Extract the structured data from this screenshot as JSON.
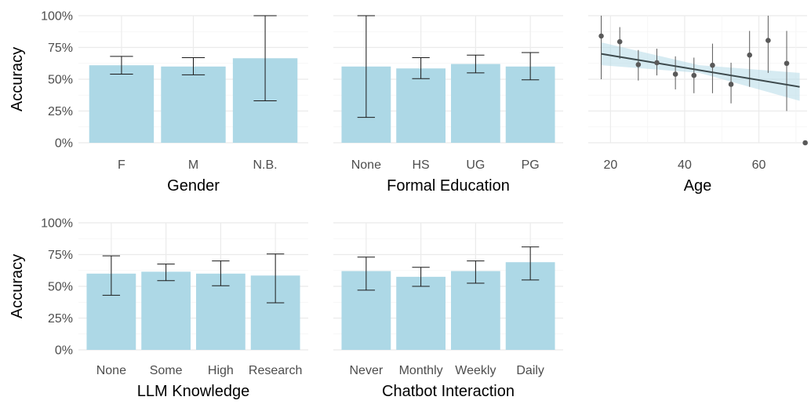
{
  "shared": {
    "ylabel": "Accuracy"
  },
  "chart_data": [
    {
      "id": "gender",
      "type": "bar",
      "xlabel": "Gender",
      "categories": [
        "F",
        "M",
        "N.B."
      ],
      "values": [
        0.61,
        0.6,
        0.665
      ],
      "lower": [
        0.54,
        0.535,
        0.33
      ],
      "upper": [
        0.68,
        0.67,
        1.0
      ],
      "ylim": [
        0,
        1
      ],
      "yticks": [
        "0%",
        "25%",
        "50%",
        "75%",
        "100%"
      ],
      "show_ylabel": true
    },
    {
      "id": "education",
      "type": "bar",
      "xlabel": "Formal Education",
      "categories": [
        "None",
        "HS",
        "UG",
        "PG"
      ],
      "values": [
        0.6,
        0.585,
        0.62,
        0.6
      ],
      "lower": [
        0.2,
        0.505,
        0.55,
        0.495
      ],
      "upper": [
        1.0,
        0.67,
        0.69,
        0.71
      ],
      "ylim": [
        0,
        1
      ],
      "show_ylabel": false
    },
    {
      "id": "age",
      "type": "scatter",
      "xlabel": "Age",
      "x": [
        17.5,
        22.5,
        27.5,
        32.5,
        37.5,
        42.5,
        47.5,
        52.5,
        57.5,
        62.5,
        67.5,
        72.5
      ],
      "y": [
        0.84,
        0.795,
        0.615,
        0.63,
        0.54,
        0.53,
        0.61,
        0.46,
        0.69,
        0.805,
        0.625,
        0.0
      ],
      "lower": [
        0.5,
        0.66,
        0.49,
        0.53,
        0.42,
        0.39,
        0.39,
        0.31,
        0.44,
        0.55,
        0.25,
        0.0
      ],
      "upper": [
        1.0,
        0.91,
        0.73,
        0.74,
        0.68,
        0.67,
        0.78,
        0.63,
        0.88,
        1.0,
        0.88,
        0.0
      ],
      "trend": {
        "x": [
          17.5,
          71
        ],
        "y": [
          0.7,
          0.44
        ]
      },
      "ribbon": {
        "x": [
          17.5,
          44,
          71
        ],
        "lower": [
          0.61,
          0.55,
          0.33
        ],
        "upper": [
          0.79,
          0.61,
          0.55
        ]
      },
      "xlim": [
        14,
        73
      ],
      "xticks": [
        "20",
        "40",
        "60"
      ],
      "ylim": [
        0,
        1
      ],
      "show_ylabel": false
    },
    {
      "id": "llm",
      "type": "bar",
      "xlabel": "LLM Knowledge",
      "categories": [
        "None",
        "Some",
        "High",
        "Research"
      ],
      "values": [
        0.6,
        0.615,
        0.6,
        0.585
      ],
      "lower": [
        0.43,
        0.545,
        0.505,
        0.37
      ],
      "upper": [
        0.74,
        0.675,
        0.7,
        0.755
      ],
      "ylim": [
        0,
        1
      ],
      "yticks": [
        "0%",
        "25%",
        "50%",
        "75%",
        "100%"
      ],
      "show_ylabel": true
    },
    {
      "id": "chatbot",
      "type": "bar",
      "xlabel": "Chatbot Interaction",
      "categories": [
        "Never",
        "Monthly",
        "Weekly",
        "Daily"
      ],
      "values": [
        0.62,
        0.575,
        0.62,
        0.69
      ],
      "lower": [
        0.47,
        0.5,
        0.525,
        0.55
      ],
      "upper": [
        0.73,
        0.65,
        0.7,
        0.81
      ],
      "ylim": [
        0,
        1
      ],
      "show_ylabel": false
    }
  ]
}
